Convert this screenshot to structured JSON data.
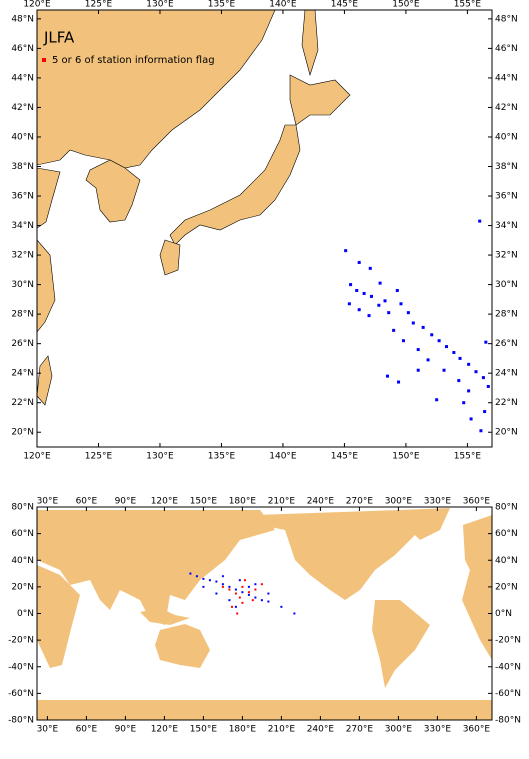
{
  "maps": [
    {
      "title": "JLFA",
      "legend": {
        "text": "5 or 6 of station information flag",
        "color": "#ff0000"
      },
      "xlim": [
        120,
        157
      ],
      "ylim": [
        19,
        48.6
      ],
      "xticks": [
        {
          "value": 120,
          "label": "120°E"
        },
        {
          "value": 125,
          "label": "125°E"
        },
        {
          "value": 130,
          "label": "130°E"
        },
        {
          "value": 135,
          "label": "135°E"
        },
        {
          "value": 140,
          "label": "140°E"
        },
        {
          "value": 145,
          "label": "145°E"
        },
        {
          "value": 150,
          "label": "150°E"
        },
        {
          "value": 155,
          "label": "155°E"
        }
      ],
      "yticks": [
        {
          "value": 20,
          "label": "20°N"
        },
        {
          "value": 22,
          "label": "22°N"
        },
        {
          "value": 24,
          "label": "24°N"
        },
        {
          "value": 26,
          "label": "26°N"
        },
        {
          "value": 28,
          "label": "28°N"
        },
        {
          "value": 30,
          "label": "30°N"
        },
        {
          "value": 32,
          "label": "32°N"
        },
        {
          "value": 34,
          "label": "34°N"
        },
        {
          "value": 36,
          "label": "36°N"
        },
        {
          "value": 38,
          "label": "38°N"
        },
        {
          "value": 40,
          "label": "40°N"
        },
        {
          "value": 42,
          "label": "42°N"
        },
        {
          "value": 44,
          "label": "44°N"
        },
        {
          "value": 46,
          "label": "46°N"
        },
        {
          "value": 48,
          "label": "48°N"
        }
      ],
      "series": [
        {
          "color": "#0000ff",
          "lon": [
            156.0,
            145.1,
            146.2,
            147.1,
            145.5,
            146.0,
            146.6,
            147.2,
            147.9,
            148.3,
            149.3,
            145.4,
            146.2,
            147.0,
            147.8,
            148.6,
            149.6,
            150.2,
            150.6,
            151.4,
            152.1,
            152.7,
            153.3,
            153.9,
            154.4,
            155.1,
            155.7,
            156.3,
            156.7,
            149.0,
            149.8,
            151.0,
            151.8,
            153.1,
            154.3,
            155.1,
            156.4,
            148.5,
            149.4,
            152.5,
            155.3,
            156.1,
            156.5,
            154.7,
            151.0
          ],
          "lat": [
            34.3,
            32.3,
            31.5,
            31.1,
            30.0,
            29.6,
            29.4,
            29.2,
            30.1,
            28.9,
            29.6,
            28.7,
            28.3,
            27.9,
            28.6,
            28.1,
            28.7,
            28.1,
            27.4,
            27.1,
            26.6,
            26.2,
            25.8,
            25.4,
            25.0,
            24.6,
            24.1,
            23.7,
            23.1,
            26.9,
            26.2,
            25.6,
            24.9,
            24.2,
            23.5,
            22.8,
            21.4,
            23.8,
            23.4,
            22.2,
            20.9,
            20.1,
            26.1,
            22.0,
            24.2
          ]
        }
      ]
    },
    {
      "xlim": [
        22,
        372
      ],
      "ylim": [
        -80,
        80
      ],
      "xticks": [
        {
          "value": 30,
          "label": "30°E"
        },
        {
          "value": 60,
          "label": "60°E"
        },
        {
          "value": 90,
          "label": "90°E"
        },
        {
          "value": 120,
          "label": "120°E"
        },
        {
          "value": 150,
          "label": "150°E"
        },
        {
          "value": 180,
          "label": "180°E"
        },
        {
          "value": 210,
          "label": "210°E"
        },
        {
          "value": 240,
          "label": "240°E"
        },
        {
          "value": 270,
          "label": "270°E"
        },
        {
          "value": 300,
          "label": "300°E"
        },
        {
          "value": 330,
          "label": "330°E"
        },
        {
          "value": 360,
          "label": "360°E"
        }
      ],
      "yticks": [
        {
          "value": -80,
          "label": "-80°N"
        },
        {
          "value": -60,
          "label": "-60°N"
        },
        {
          "value": -40,
          "label": "-40°N"
        },
        {
          "value": -20,
          "label": "-20°N"
        },
        {
          "value": 0,
          "label": "0°N"
        },
        {
          "value": 20,
          "label": "20°N"
        },
        {
          "value": 40,
          "label": "40°N"
        },
        {
          "value": 60,
          "label": "60°N"
        },
        {
          "value": 80,
          "label": "80°N"
        }
      ],
      "series": [
        {
          "color": "#0000ff",
          "lon": [
            140,
            145,
            150,
            155,
            160,
            165,
            170,
            175,
            180,
            185,
            190,
            195,
            200,
            210,
            220,
            150,
            160,
            170,
            175,
            185,
            190,
            200,
            165,
            178
          ],
          "lat": [
            30,
            28,
            26,
            25,
            24,
            22,
            20,
            18,
            16,
            14,
            12,
            10,
            9,
            5,
            0,
            20,
            15,
            10,
            5,
            20,
            22,
            15,
            28,
            25
          ]
        },
        {
          "color": "#ff0000",
          "lon": [
            165,
            170,
            175,
            178,
            180,
            182,
            185,
            188,
            172,
            176,
            180,
            190,
            195
          ],
          "lat": [
            20,
            18,
            15,
            12,
            20,
            25,
            16,
            10,
            5,
            0,
            8,
            18,
            22
          ]
        }
      ]
    }
  ]
}
